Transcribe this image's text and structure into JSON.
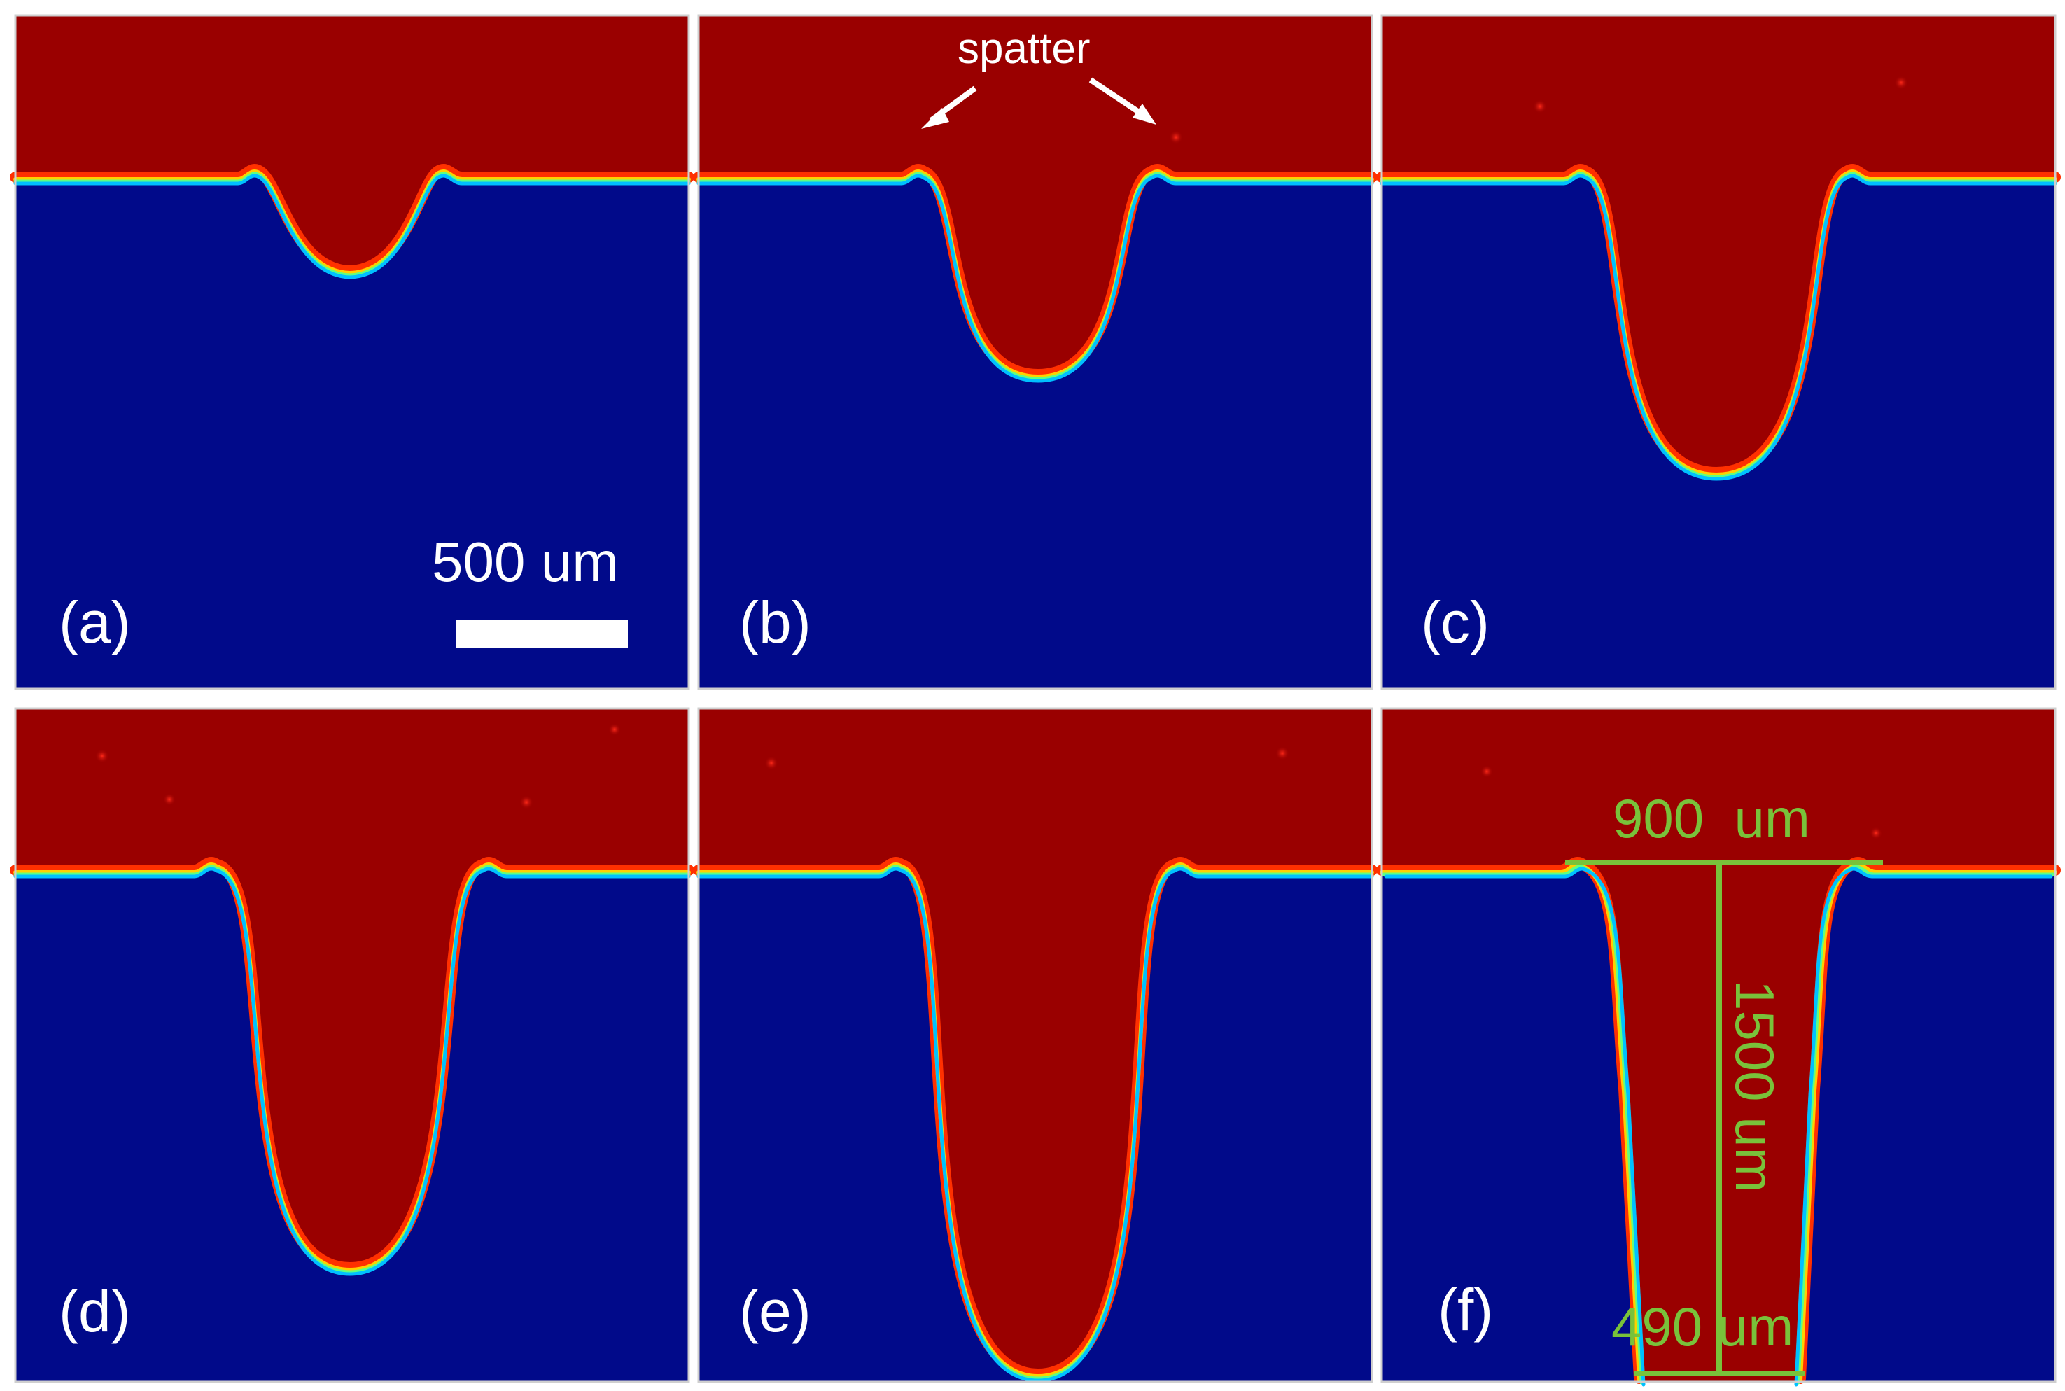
{
  "figure": {
    "colors": {
      "vapor": "#9a0000",
      "substrate": "#010a8a",
      "annotation_white": "#ffffff",
      "measure_green": "#79c23a"
    },
    "panels": [
      {
        "label": "(a)"
      },
      {
        "label": "(b)"
      },
      {
        "label": "(c)"
      },
      {
        "label": "(d)"
      },
      {
        "label": "(e)"
      },
      {
        "label": "(f)"
      }
    ],
    "scale_bar": {
      "label": "500 um"
    },
    "spatter_annotation": {
      "label": "spatter"
    },
    "measurements": {
      "top_width": "900  um",
      "depth": "1500 um",
      "bottom_width": "490 um"
    }
  }
}
